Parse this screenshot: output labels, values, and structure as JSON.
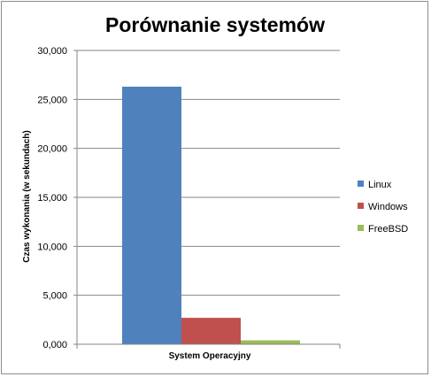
{
  "chart_data": {
    "type": "bar",
    "title": "Porównanie systemów",
    "xlabel": "System Operacyjny",
    "ylabel": "Czas wykonania (w sekundach)",
    "categories": [
      "System Operacyjny"
    ],
    "series": [
      {
        "name": "Linux",
        "values": [
          26.3
        ],
        "color": "#4f81bd"
      },
      {
        "name": "Windows",
        "values": [
          2.7
        ],
        "color": "#c0504d"
      },
      {
        "name": "FreeBSD",
        "values": [
          0.4
        ],
        "color": "#9bbb59"
      }
    ],
    "ylim": [
      0,
      30
    ],
    "yticks": [
      0,
      5,
      10,
      15,
      20,
      25,
      30
    ],
    "ytick_labels": [
      "0,000",
      "5,000",
      "10,000",
      "15,000",
      "20,000",
      "25,000",
      "30,000"
    ],
    "grid": true,
    "legend_position": "right"
  }
}
